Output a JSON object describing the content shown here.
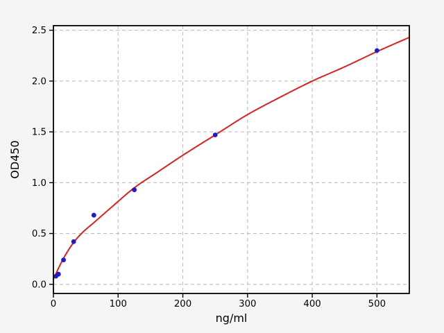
{
  "chart_data": {
    "type": "scatter",
    "title": "",
    "xlabel": "ng/ml",
    "ylabel": "OD450",
    "xlim": [
      0,
      550
    ],
    "ylim": [
      -0.09,
      2.545
    ],
    "grid": true,
    "grid_style": "dashed",
    "legend": "none",
    "x_ticks": {
      "values": [
        0,
        100,
        200,
        300,
        400,
        500
      ],
      "labels": [
        "0",
        "100",
        "200",
        "300",
        "400",
        "500"
      ]
    },
    "y_ticks": {
      "values": [
        0.0,
        0.5,
        1.0,
        1.5,
        2.0,
        2.5
      ],
      "labels": [
        "0.0",
        "0.5",
        "1.0",
        "1.5",
        "2.0",
        "2.5"
      ]
    },
    "series": [
      {
        "name": "standard-points",
        "type": "scatter",
        "x": [
          3.9,
          7.8,
          15.6,
          31.25,
          62.5,
          125,
          250,
          500
        ],
        "y": [
          0.08,
          0.1,
          0.24,
          0.42,
          0.68,
          0.93,
          1.47,
          2.3
        ]
      },
      {
        "name": "fitted-curve",
        "type": "line",
        "points": [
          [
            0,
            0.05
          ],
          [
            8,
            0.16
          ],
          [
            16,
            0.26
          ],
          [
            31,
            0.41
          ],
          [
            45,
            0.51
          ],
          [
            63,
            0.61
          ],
          [
            90,
            0.76
          ],
          [
            125,
            0.95
          ],
          [
            160,
            1.1
          ],
          [
            200,
            1.27
          ],
          [
            250,
            1.47
          ],
          [
            300,
            1.67
          ],
          [
            350,
            1.84
          ],
          [
            400,
            2.0
          ],
          [
            450,
            2.14
          ],
          [
            500,
            2.29
          ],
          [
            550,
            2.43
          ]
        ]
      }
    ],
    "colors": {
      "figure_bg": "#f5f5f5",
      "plot_bg": "#ffffff",
      "grid": "#bdbdbd",
      "spine": "#000000",
      "point": "#1c1ccd",
      "curve": "#dd2020",
      "text": "#000000"
    }
  }
}
